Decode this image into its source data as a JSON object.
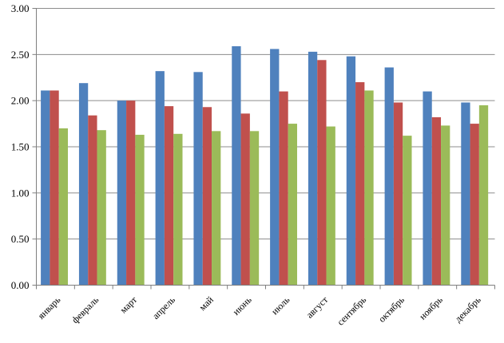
{
  "chart_data": {
    "type": "bar",
    "title": "",
    "xlabel": "",
    "ylabel": "",
    "categories": [
      "январь",
      "февраль",
      "март",
      "апрель",
      "май",
      "июнь",
      "июль",
      "август",
      "сентябрь",
      "октябрь",
      "ноябрь",
      "декабрь"
    ],
    "series": [
      {
        "name": "blue",
        "color": "#4F81BD",
        "values": [
          2.11,
          2.19,
          2.0,
          2.32,
          2.31,
          2.59,
          2.56,
          2.53,
          2.48,
          2.36,
          2.1,
          1.98
        ]
      },
      {
        "name": "red",
        "color": "#C0504D",
        "values": [
          2.11,
          1.84,
          2.0,
          1.94,
          1.93,
          1.86,
          2.1,
          2.44,
          2.2,
          1.98,
          1.82,
          1.75
        ]
      },
      {
        "name": "green",
        "color": "#9BBB59",
        "values": [
          1.7,
          1.68,
          1.63,
          1.64,
          1.67,
          1.67,
          1.75,
          1.72,
          2.11,
          1.62,
          1.73,
          1.95
        ]
      }
    ],
    "ylim": [
      0,
      3
    ],
    "ytick_step": 0.5,
    "ytick_labels": [
      "0.00",
      "0.50",
      "1.00",
      "1.50",
      "2.00",
      "2.50",
      "3.00"
    ],
    "grid": true,
    "legend": "none",
    "colors": {
      "axis": "#7f7f7f",
      "grid": "#8c8c8c",
      "text": "#000000",
      "background": "#ffffff"
    }
  }
}
